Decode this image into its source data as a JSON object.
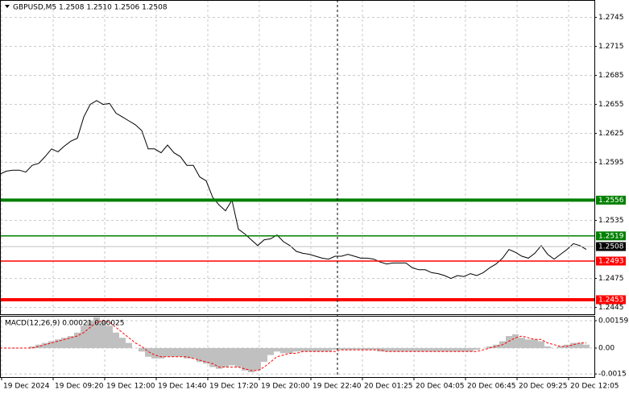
{
  "chart_data": [
    {
      "type": "line",
      "title": "GBPUSD,M5  1.2508 1.2510 1.2506 1.2508",
      "color": "#000000",
      "grid": true,
      "xlim": [
        0,
        369
      ],
      "ylim": [
        1.2438,
        1.2763
      ],
      "yticks": [
        1.2445,
        1.2475,
        1.2535,
        1.2595,
        1.2625,
        1.2655,
        1.2685,
        1.2715,
        1.2745
      ],
      "xticks": [
        {
          "value": 1,
          "label": "19 Dec 2024"
        },
        {
          "value": 33,
          "label": "19 Dec 09:20"
        },
        {
          "value": 65,
          "label": "19 Dec 12:00"
        },
        {
          "value": 97,
          "label": "19 Dec 14:40"
        },
        {
          "value": 129,
          "label": "19 Dec 17:20"
        },
        {
          "value": 161,
          "label": "19 Dec 20:00"
        },
        {
          "value": 193,
          "label": "19 Dec 22:40"
        },
        {
          "value": 225,
          "label": "20 Dec 01:25"
        },
        {
          "value": 257,
          "label": "20 Dec 04:05"
        },
        {
          "value": 289,
          "label": "20 Dec 06:45"
        },
        {
          "value": 321,
          "label": "20 Dec 09:25"
        },
        {
          "value": 353,
          "label": "20 Dec 12:05"
        }
      ],
      "levels": [
        {
          "value": 1.2556,
          "color": "#008000",
          "weight": "bold"
        },
        {
          "value": 1.2519,
          "color": "#008000",
          "weight": "normal"
        },
        {
          "value": 1.2493,
          "color": "#ff0000",
          "weight": "normal"
        },
        {
          "value": 1.2453,
          "color": "#ff0000",
          "weight": "bold"
        }
      ],
      "last": 1.2508,
      "x": [
        0,
        4,
        8,
        12,
        16,
        20,
        24,
        28,
        32,
        36,
        40,
        44,
        48,
        52,
        56,
        60,
        64,
        68,
        72,
        76,
        80,
        84,
        88,
        92,
        96,
        100,
        104,
        108,
        112,
        116,
        120,
        124,
        128,
        132,
        136,
        140,
        144,
        148,
        152,
        156,
        160,
        164,
        168,
        172,
        176,
        180,
        184,
        188,
        192,
        196,
        200,
        204,
        208,
        212,
        216,
        220,
        224,
        228,
        232,
        236,
        240,
        244,
        248,
        252,
        256,
        260,
        264,
        268,
        272,
        276,
        280,
        284,
        288,
        292,
        296,
        300,
        304,
        308,
        312,
        316,
        320,
        324,
        328,
        332,
        336,
        340,
        344,
        348,
        352,
        356,
        360,
        364
      ],
      "values": [
        1.2583,
        1.2586,
        1.2587,
        1.2587,
        1.2585,
        1.2592,
        1.2594,
        1.2601,
        1.2609,
        1.2606,
        1.2612,
        1.2617,
        1.262,
        1.2642,
        1.2655,
        1.2659,
        1.2655,
        1.2656,
        1.2646,
        1.2642,
        1.2638,
        1.2634,
        1.2628,
        1.2609,
        1.2609,
        1.2605,
        1.2613,
        1.2605,
        1.2601,
        1.2592,
        1.2592,
        1.258,
        1.2576,
        1.2559,
        1.2551,
        1.2545,
        1.2556,
        1.2526,
        1.2521,
        1.2515,
        1.2509,
        1.2515,
        1.2516,
        1.252,
        1.2513,
        1.2509,
        1.2503,
        1.2501,
        1.25,
        1.2498,
        1.2496,
        1.2495,
        1.2498,
        1.2498,
        1.25,
        1.2498,
        1.2496,
        1.2496,
        1.2495,
        1.2492,
        1.249,
        1.2491,
        1.2491,
        1.2491,
        1.2486,
        1.2484,
        1.2484,
        1.2481,
        1.248,
        1.2478,
        1.2475,
        1.2478,
        1.2477,
        1.248,
        1.2478,
        1.2481,
        1.2486,
        1.249,
        1.2496,
        1.2505,
        1.2502,
        1.2498,
        1.2496,
        1.2501,
        1.2509,
        1.25,
        1.2495,
        1.25,
        1.2505,
        1.2511,
        1.2509,
        1.2505
      ]
    },
    {
      "type": "bar",
      "title": "MACD(12,26,9) 0.00021 0.00025",
      "color": "#c0c0c0",
      "signal_color": "#ff0000",
      "grid": true,
      "xlim": [
        0,
        369
      ],
      "ylim": [
        -0.00168,
        0.00187
      ],
      "yticks": [
        -0.0015,
        {
          "value": 0,
          "label": "0.00"
        },
        0.00159
      ],
      "x": [
        0,
        4,
        8,
        12,
        16,
        20,
        24,
        28,
        32,
        36,
        40,
        44,
        48,
        52,
        56,
        60,
        64,
        68,
        72,
        76,
        80,
        84,
        88,
        92,
        96,
        100,
        104,
        108,
        112,
        116,
        120,
        124,
        128,
        132,
        136,
        140,
        144,
        148,
        152,
        156,
        160,
        164,
        168,
        172,
        176,
        180,
        184,
        188,
        192,
        196,
        200,
        204,
        208,
        212,
        216,
        220,
        224,
        228,
        232,
        236,
        240,
        244,
        248,
        252,
        256,
        260,
        264,
        268,
        272,
        276,
        280,
        284,
        288,
        292,
        296,
        300,
        304,
        308,
        312,
        316,
        320,
        324,
        328,
        332,
        336,
        340,
        344,
        348,
        352,
        356,
        360,
        364
      ],
      "values": [
        0,
        0,
        0,
        0,
        0,
        0.0001,
        0.0002,
        0.0003,
        0.0004,
        0.0005,
        0.0006,
        0.0007,
        0.0009,
        0.0013,
        0.0016,
        0.0018,
        0.0016,
        0.0013,
        0.0009,
        0.0006,
        0.0003,
        0,
        -0.0002,
        -0.0005,
        -0.0006,
        -0.0006,
        -0.0005,
        -0.0005,
        -0.0005,
        -0.0006,
        -0.0006,
        -0.0008,
        -0.0009,
        -0.0011,
        -0.0012,
        -0.0011,
        -0.001,
        -0.0011,
        -0.0013,
        -0.0014,
        -0.0013,
        -0.0008,
        -0.0004,
        -0.0002,
        -0.0003,
        -0.0003,
        -0.0002,
        -0.0002,
        -0.0002,
        -0.0002,
        -0.0002,
        -0.0002,
        -0.0001,
        -0.0001,
        -0.0001,
        -0.0001,
        -0.0001,
        -0.0001,
        -0.0001,
        -0.0002,
        -0.0002,
        -0.0002,
        -0.0002,
        -0.0002,
        -0.0002,
        -0.0002,
        -0.0002,
        -0.0002,
        -0.0002,
        -0.0002,
        -0.0002,
        -0.0002,
        -0.0002,
        -0.0002,
        -0.0001,
        0,
        0.0001,
        0.0002,
        0.0004,
        0.0007,
        0.0008,
        0.0006,
        0.0005,
        0.0005,
        0.0004,
        0.0001,
        0,
        0.0001,
        0.0002,
        0.0003,
        0.0003,
        0.0002
      ],
      "signal": [
        0,
        0,
        0,
        0,
        0,
        0,
        0.0001,
        0.0002,
        0.0003,
        0.0004,
        0.0005,
        0.0006,
        0.0007,
        0.0009,
        0.0012,
        0.0015,
        0.0016,
        0.0015,
        0.0012,
        0.0009,
        0.0006,
        0.0003,
        0.0001,
        -0.0002,
        -0.0004,
        -0.0005,
        -0.0005,
        -0.0005,
        -0.0005,
        -0.0005,
        -0.0006,
        -0.0007,
        -0.0008,
        -0.0009,
        -0.0011,
        -0.0011,
        -0.0011,
        -0.0011,
        -0.0012,
        -0.0013,
        -0.0013,
        -0.0011,
        -0.0008,
        -0.0005,
        -0.0004,
        -0.0003,
        -0.0003,
        -0.0002,
        -0.0002,
        -0.0002,
        -0.0002,
        -0.0002,
        -0.0002,
        -0.0001,
        -0.0001,
        -0.0001,
        -0.0001,
        -0.0001,
        -0.0001,
        -0.0001,
        -0.0002,
        -0.0002,
        -0.0002,
        -0.0002,
        -0.0002,
        -0.0002,
        -0.0002,
        -0.0002,
        -0.0002,
        -0.0002,
        -0.0002,
        -0.0002,
        -0.0002,
        -0.0002,
        -0.0002,
        -0.0001,
        0,
        0.0001,
        0.0002,
        0.0004,
        0.0006,
        0.0007,
        0.0006,
        0.0005,
        0.0005,
        0.0003,
        0.0002,
        0.0001,
        0.0001,
        0.0002,
        0.0003,
        0.0003
      ]
    }
  ]
}
